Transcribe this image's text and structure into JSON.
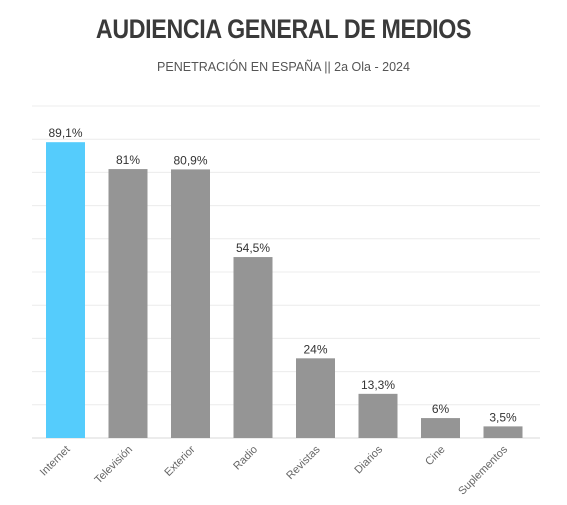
{
  "chart_data": {
    "type": "bar",
    "title": "AUDIENCIA GENERAL DE MEDIOS",
    "subtitle": "PENETRACIÓN EN ESPAÑA || 2a Ola - 2024",
    "categories": [
      "Internet",
      "Televisión",
      "Exterior",
      "Radio",
      "Revistas",
      "Diarios",
      "Cine",
      "Suplementos"
    ],
    "values": [
      89.1,
      81,
      80.9,
      54.5,
      24,
      13.3,
      6,
      3.5
    ],
    "value_labels": [
      "89,1%",
      "81%",
      "80,9%",
      "54,5%",
      "24%",
      "13,3%",
      "6%",
      "3,5%"
    ],
    "ylim": [
      0,
      100
    ],
    "grid": true,
    "highlight_index": 0,
    "colors": {
      "highlight": "#55ccfc",
      "default": "#959595"
    }
  }
}
